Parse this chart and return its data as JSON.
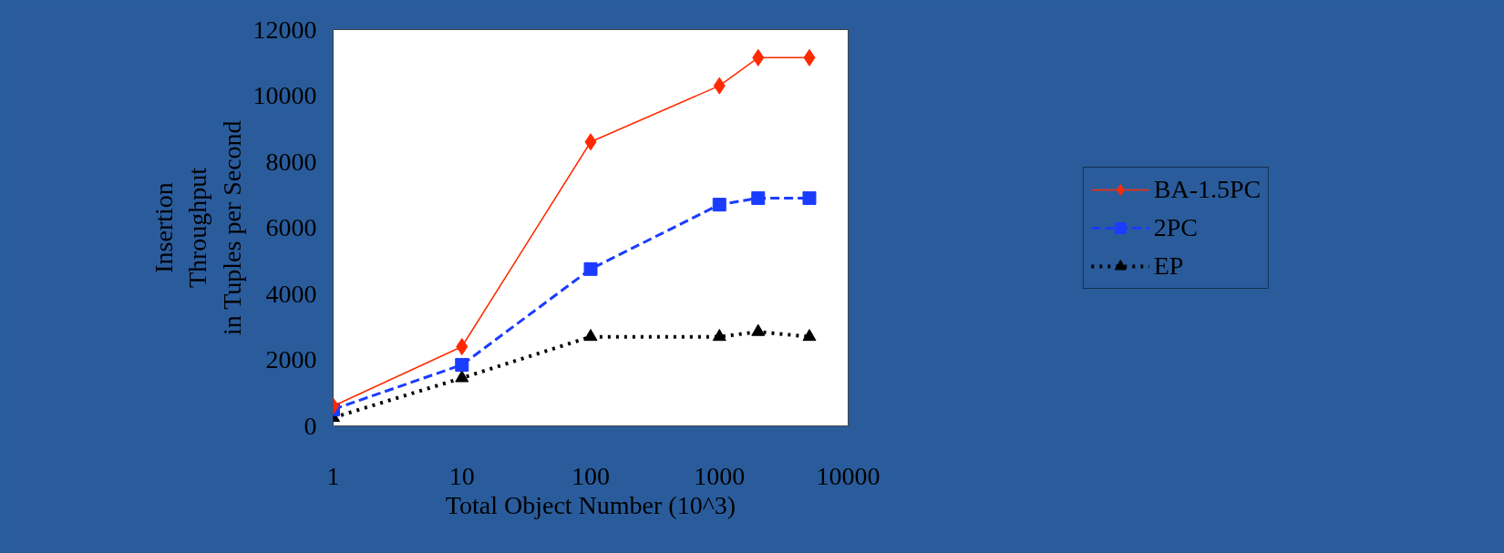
{
  "chart_data": {
    "type": "line",
    "xlabel": "Total Object Number (10^3)",
    "ylabel": "Insertion\nThroughput\nin Tuples per Second",
    "x": [
      1,
      10,
      100,
      1000,
      2000,
      5000
    ],
    "series": [
      {
        "name": "BA-1.5PC",
        "color": "#ff2a00",
        "values": [
          600,
          2400,
          8600,
          10300,
          11150,
          11150
        ],
        "marker": "diamond",
        "line_style": "solid"
      },
      {
        "name": "2PC",
        "color": "#1a3cff",
        "values": [
          500,
          1850,
          4750,
          6700,
          6900,
          6900
        ],
        "marker": "square",
        "line_style": "dashed"
      },
      {
        "name": "EP",
        "color": "#000000",
        "values": [
          250,
          1450,
          2700,
          2700,
          2850,
          2700
        ],
        "marker": "triangle",
        "line_style": "dotted"
      }
    ],
    "log": "x",
    "xlim": [
      1,
      10000
    ],
    "xticks": [
      1,
      10,
      100,
      1000,
      10000
    ],
    "ylim": [
      0,
      12000
    ],
    "yticks": [
      0,
      2000,
      4000,
      6000,
      8000,
      10000,
      12000
    ],
    "grid": false,
    "legend": "right"
  }
}
